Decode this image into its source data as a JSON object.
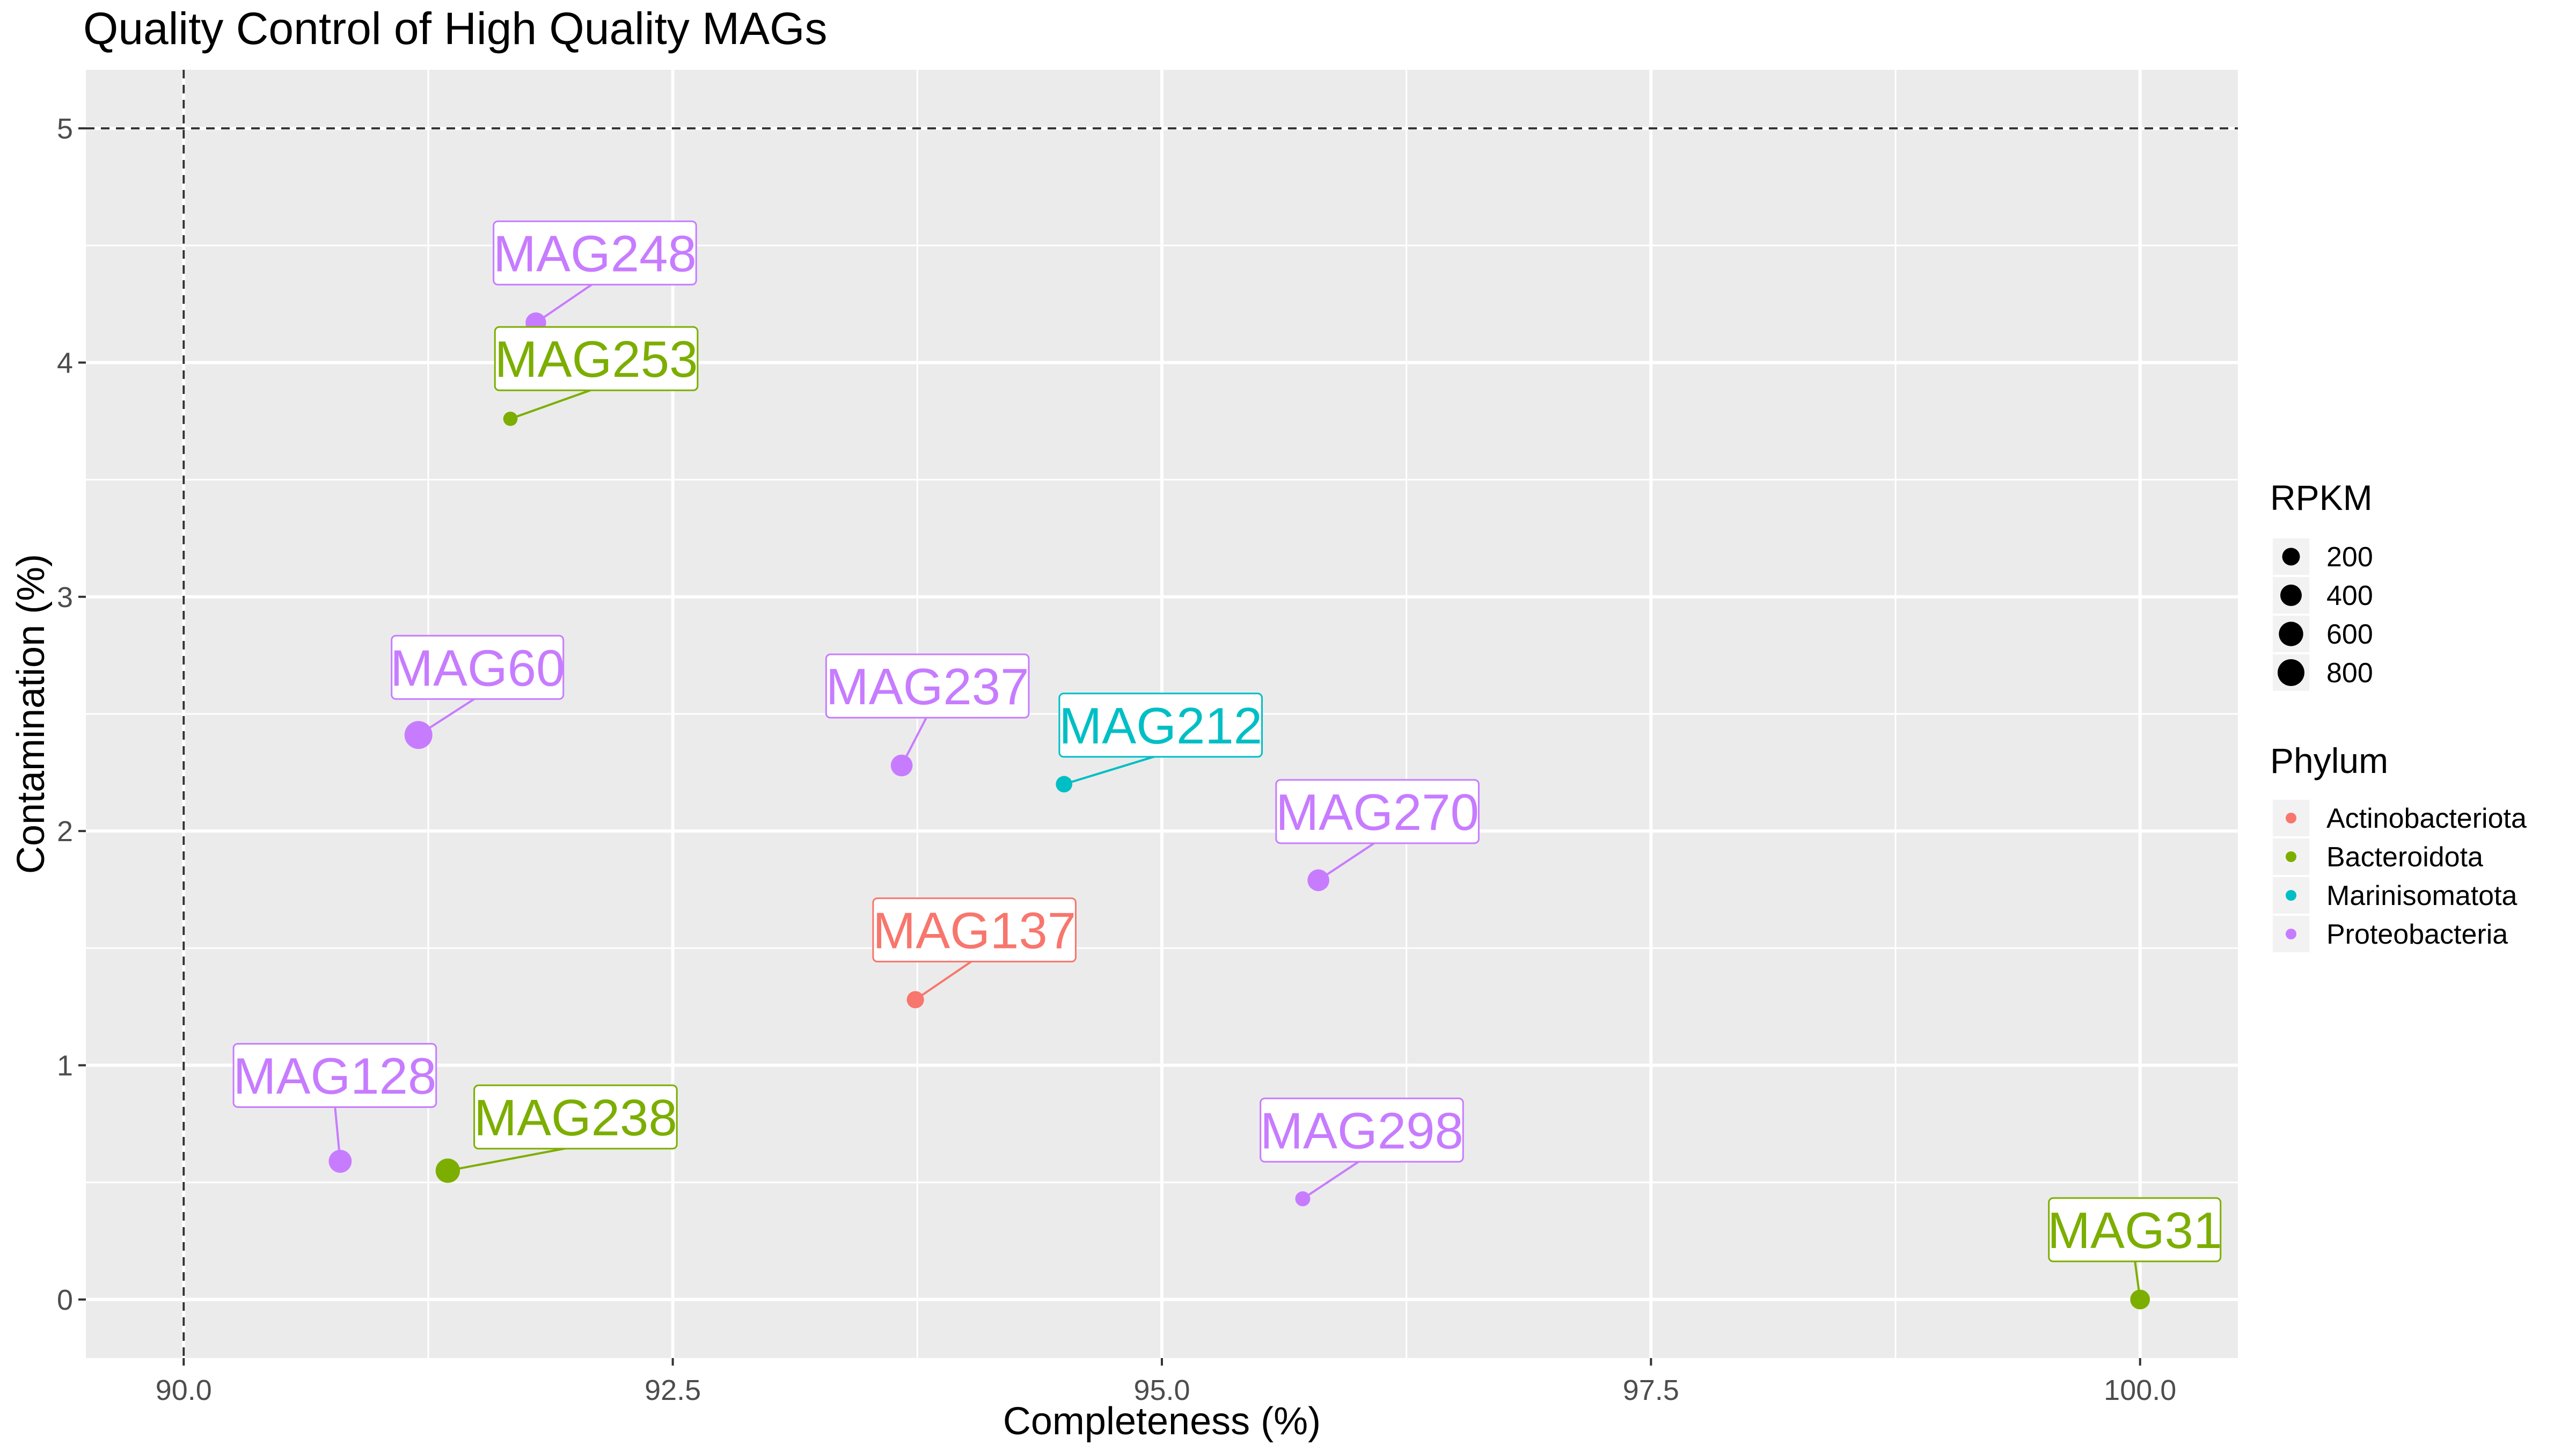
{
  "chart_data": {
    "type": "scatter",
    "title": "Quality Control of High Quality MAGs",
    "xlabel": "Completeness (%)",
    "ylabel": "Contamination (%)",
    "xlim": [
      89.5,
      100.5
    ],
    "ylim": [
      -0.25,
      5.25
    ],
    "xticks": [
      90.0,
      92.5,
      95.0,
      97.5,
      100.0
    ],
    "xtick_labels": [
      "90.0",
      "92.5",
      "95.0",
      "97.5",
      "100.0"
    ],
    "yticks": [
      0,
      1,
      2,
      3,
      4,
      5
    ],
    "ytick_labels": [
      "0",
      "1",
      "2",
      "3",
      "4",
      "5"
    ],
    "reference_lines": {
      "vertical_x": 90,
      "horizontal_y": 5,
      "style": "dashed"
    },
    "grid": true,
    "legend_position": "right",
    "size_legend": {
      "title": "RPKM",
      "values": [
        200,
        400,
        600,
        800
      ],
      "labels": [
        "200",
        "400",
        "600",
        "800"
      ]
    },
    "color_legend": {
      "title": "Phylum",
      "entries": [
        {
          "name": "Actinobacteriota",
          "color": "#F8766D"
        },
        {
          "name": "Bacteroidota",
          "color": "#7CAE00"
        },
        {
          "name": "Marinisomatota",
          "color": "#00BFC4"
        },
        {
          "name": "Proteobacteria",
          "color": "#C77CFF"
        }
      ]
    },
    "points": [
      {
        "label": "MAG248",
        "x": 91.8,
        "y": 4.17,
        "phylum": "Proteobacteria",
        "rpkm": 350
      },
      {
        "label": "MAG253",
        "x": 91.67,
        "y": 3.76,
        "phylum": "Bacteroidota",
        "rpkm": 80
      },
      {
        "label": "MAG60",
        "x": 91.2,
        "y": 2.41,
        "phylum": "Proteobacteria",
        "rpkm": 900
      },
      {
        "label": "MAG237",
        "x": 93.67,
        "y": 2.28,
        "phylum": "Proteobacteria",
        "rpkm": 420
      },
      {
        "label": "MAG212",
        "x": 94.5,
        "y": 2.2,
        "phylum": "Marinisomatota",
        "rpkm": 150
      },
      {
        "label": "MAG270",
        "x": 95.8,
        "y": 1.79,
        "phylum": "Proteobacteria",
        "rpkm": 420
      },
      {
        "label": "MAG137",
        "x": 93.74,
        "y": 1.28,
        "phylum": "Actinobacteriota",
        "rpkm": 180
      },
      {
        "label": "MAG128",
        "x": 90.8,
        "y": 0.59,
        "phylum": "Proteobacteria",
        "rpkm": 500
      },
      {
        "label": "MAG238",
        "x": 91.35,
        "y": 0.55,
        "phylum": "Bacteroidota",
        "rpkm": 600
      },
      {
        "label": "MAG298",
        "x": 95.72,
        "y": 0.43,
        "phylum": "Proteobacteria",
        "rpkm": 100
      },
      {
        "label": "MAG31",
        "x": 100.0,
        "y": 0.0,
        "phylum": "Bacteroidota",
        "rpkm": 300
      }
    ]
  }
}
